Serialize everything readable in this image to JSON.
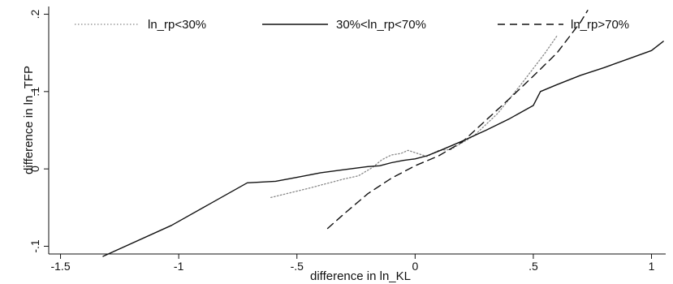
{
  "chart_data": {
    "type": "line",
    "title": "",
    "xlabel": "difference in ln_KL",
    "ylabel": "difference in ln_TFP",
    "xlim": [
      -1.55,
      1.06
    ],
    "ylim": [
      -0.11,
      0.21
    ],
    "xticks": [
      {
        "value": -1.5,
        "label": "-1.5"
      },
      {
        "value": -1,
        "label": "-1"
      },
      {
        "value": -0.5,
        "label": "-.5"
      },
      {
        "value": 0,
        "label": "0"
      },
      {
        "value": 0.5,
        "label": ".5"
      },
      {
        "value": 1,
        "label": "1"
      }
    ],
    "yticks": [
      {
        "value": -0.1,
        "label": "-.1"
      },
      {
        "value": 0,
        "label": "0"
      },
      {
        "value": 0.1,
        "label": ".1"
      },
      {
        "value": 0.2,
        "label": ".2"
      }
    ],
    "grid": false,
    "legend_position": "top",
    "series": [
      {
        "name": "ln_rp<30%",
        "style": "dotted",
        "color": "#888888",
        "x": [
          -0.61,
          -0.45,
          -0.3,
          -0.24,
          -0.18,
          -0.14,
          -0.1,
          -0.06,
          -0.03,
          0.0,
          0.05,
          0.1,
          0.15,
          0.25,
          0.35,
          0.45,
          0.55,
          0.6
        ],
        "y": [
          -0.037,
          -0.025,
          -0.013,
          -0.009,
          0.002,
          0.012,
          0.018,
          0.02,
          0.024,
          0.021,
          0.016,
          0.024,
          0.025,
          0.043,
          0.072,
          0.11,
          0.15,
          0.172
        ]
      },
      {
        "name": "30%<ln_rp<70%",
        "style": "solid",
        "color": "#111111",
        "x": [
          -1.32,
          -1.03,
          -0.71,
          -0.59,
          -0.5,
          -0.4,
          -0.3,
          -0.2,
          -0.15,
          -0.1,
          -0.05,
          0.0,
          0.05,
          0.1,
          0.2,
          0.3,
          0.4,
          0.5,
          0.53,
          0.6,
          0.7,
          0.8,
          0.9,
          1.0,
          1.05
        ],
        "y": [
          -0.113,
          -0.073,
          -0.018,
          -0.016,
          -0.011,
          -0.005,
          -0.001,
          0.003,
          0.004,
          0.008,
          0.011,
          0.013,
          0.017,
          0.023,
          0.036,
          0.05,
          0.065,
          0.082,
          0.1,
          0.109,
          0.121,
          0.131,
          0.142,
          0.153,
          0.165
        ]
      },
      {
        "name": "ln_rp>70%",
        "style": "dashed",
        "color": "#111111",
        "x": [
          -0.37,
          -0.3,
          -0.2,
          -0.1,
          0.0,
          0.1,
          0.2,
          0.3,
          0.4,
          0.5,
          0.6,
          0.7,
          0.73
        ],
        "y": [
          -0.077,
          -0.058,
          -0.032,
          -0.012,
          0.004,
          0.017,
          0.035,
          0.063,
          0.091,
          0.12,
          0.15,
          0.19,
          0.205
        ]
      }
    ]
  }
}
